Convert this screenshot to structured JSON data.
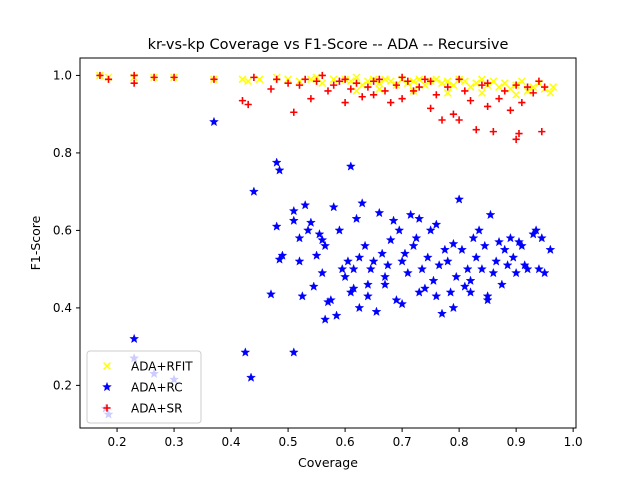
{
  "chart_data": {
    "type": "scatter",
    "title": "kr-vs-kp Coverage vs F1-Score -- ADA -- Recursive",
    "xlabel": "Coverage",
    "ylabel": "F1-Score",
    "xlim": [
      0.135,
      1.005
    ],
    "ylim": [
      0.09,
      1.045
    ],
    "xticks": [
      "0.2",
      "0.3",
      "0.4",
      "0.5",
      "0.6",
      "0.7",
      "0.8",
      "0.9",
      "1.0"
    ],
    "yticks": [
      "0.2",
      "0.4",
      "0.6",
      "0.8",
      "1.0"
    ],
    "grid": false,
    "legend_position": "lower-left",
    "series": [
      {
        "name": "ADA+RFIT",
        "marker": "x",
        "color": "#ffff00",
        "points": [
          [
            0.17,
            1.0
          ],
          [
            0.185,
            0.995
          ],
          [
            0.23,
            0.995
          ],
          [
            0.265,
            0.995
          ],
          [
            0.3,
            0.995
          ],
          [
            0.37,
            0.99
          ],
          [
            0.42,
            0.99
          ],
          [
            0.43,
            0.985
          ],
          [
            0.45,
            0.99
          ],
          [
            0.48,
            0.995
          ],
          [
            0.5,
            0.99
          ],
          [
            0.52,
            0.985
          ],
          [
            0.54,
            0.99
          ],
          [
            0.55,
            0.995
          ],
          [
            0.56,
            0.98
          ],
          [
            0.58,
            0.99
          ],
          [
            0.6,
            0.99
          ],
          [
            0.61,
            0.985
          ],
          [
            0.62,
            0.995
          ],
          [
            0.63,
            0.975
          ],
          [
            0.64,
            0.985
          ],
          [
            0.65,
            0.99
          ],
          [
            0.66,
            0.98
          ],
          [
            0.67,
            0.99
          ],
          [
            0.68,
            0.985
          ],
          [
            0.69,
            0.975
          ],
          [
            0.7,
            0.99
          ],
          [
            0.71,
            0.98
          ],
          [
            0.72,
            0.985
          ],
          [
            0.73,
            0.99
          ],
          [
            0.74,
            0.975
          ],
          [
            0.75,
            0.985
          ],
          [
            0.76,
            0.99
          ],
          [
            0.77,
            0.98
          ],
          [
            0.78,
            0.985
          ],
          [
            0.79,
            0.975
          ],
          [
            0.8,
            0.99
          ],
          [
            0.81,
            0.985
          ],
          [
            0.82,
            0.97
          ],
          [
            0.83,
            0.98
          ],
          [
            0.84,
            0.99
          ],
          [
            0.85,
            0.975
          ],
          [
            0.86,
            0.985
          ],
          [
            0.87,
            0.97
          ],
          [
            0.88,
            0.98
          ],
          [
            0.89,
            0.965
          ],
          [
            0.9,
            0.975
          ],
          [
            0.91,
            0.985
          ],
          [
            0.92,
            0.96
          ],
          [
            0.93,
            0.97
          ],
          [
            0.94,
            0.98
          ],
          [
            0.95,
            0.965
          ],
          [
            0.96,
            0.955
          ],
          [
            0.965,
            0.97
          ],
          [
            0.62,
            0.96
          ],
          [
            0.66,
            0.965
          ],
          [
            0.72,
            0.96
          ],
          [
            0.78,
            0.955
          ],
          [
            0.84,
            0.955
          ],
          [
            0.9,
            0.95
          ]
        ]
      },
      {
        "name": "ADA+RC",
        "marker": "star",
        "color": "#0000ff",
        "points": [
          [
            0.18,
            0.14
          ],
          [
            0.185,
            0.125
          ],
          [
            0.23,
            0.32
          ],
          [
            0.23,
            0.27
          ],
          [
            0.265,
            0.23
          ],
          [
            0.3,
            0.215
          ],
          [
            0.37,
            0.88
          ],
          [
            0.425,
            0.285
          ],
          [
            0.435,
            0.22
          ],
          [
            0.44,
            0.7
          ],
          [
            0.47,
            0.435
          ],
          [
            0.48,
            0.61
          ],
          [
            0.48,
            0.775
          ],
          [
            0.485,
            0.755
          ],
          [
            0.485,
            0.525
          ],
          [
            0.49,
            0.535
          ],
          [
            0.51,
            0.285
          ],
          [
            0.51,
            0.65
          ],
          [
            0.51,
            0.625
          ],
          [
            0.52,
            0.58
          ],
          [
            0.52,
            0.52
          ],
          [
            0.525,
            0.43
          ],
          [
            0.53,
            0.665
          ],
          [
            0.535,
            0.6
          ],
          [
            0.54,
            0.62
          ],
          [
            0.545,
            0.455
          ],
          [
            0.55,
            0.535
          ],
          [
            0.555,
            0.59
          ],
          [
            0.56,
            0.575
          ],
          [
            0.56,
            0.49
          ],
          [
            0.565,
            0.37
          ],
          [
            0.565,
            0.56
          ],
          [
            0.57,
            0.415
          ],
          [
            0.575,
            0.42
          ],
          [
            0.58,
            0.66
          ],
          [
            0.585,
            0.38
          ],
          [
            0.59,
            0.6
          ],
          [
            0.595,
            0.5
          ],
          [
            0.6,
            0.48
          ],
          [
            0.605,
            0.52
          ],
          [
            0.61,
            0.765
          ],
          [
            0.61,
            0.44
          ],
          [
            0.615,
            0.5
          ],
          [
            0.62,
            0.63
          ],
          [
            0.625,
            0.4
          ],
          [
            0.625,
            0.53
          ],
          [
            0.63,
            0.67
          ],
          [
            0.635,
            0.56
          ],
          [
            0.64,
            0.43
          ],
          [
            0.645,
            0.5
          ],
          [
            0.65,
            0.52
          ],
          [
            0.655,
            0.39
          ],
          [
            0.66,
            0.645
          ],
          [
            0.665,
            0.54
          ],
          [
            0.67,
            0.46
          ],
          [
            0.675,
            0.51
          ],
          [
            0.68,
            0.575
          ],
          [
            0.685,
            0.625
          ],
          [
            0.69,
            0.42
          ],
          [
            0.695,
            0.6
          ],
          [
            0.7,
            0.52
          ],
          [
            0.705,
            0.54
          ],
          [
            0.71,
            0.49
          ],
          [
            0.715,
            0.64
          ],
          [
            0.72,
            0.56
          ],
          [
            0.725,
            0.58
          ],
          [
            0.73,
            0.63
          ],
          [
            0.735,
            0.5
          ],
          [
            0.74,
            0.45
          ],
          [
            0.745,
            0.53
          ],
          [
            0.75,
            0.6
          ],
          [
            0.755,
            0.47
          ],
          [
            0.76,
            0.615
          ],
          [
            0.765,
            0.51
          ],
          [
            0.77,
            0.385
          ],
          [
            0.775,
            0.55
          ],
          [
            0.78,
            0.52
          ],
          [
            0.785,
            0.44
          ],
          [
            0.79,
            0.565
          ],
          [
            0.795,
            0.48
          ],
          [
            0.8,
            0.68
          ],
          [
            0.805,
            0.55
          ],
          [
            0.81,
            0.455
          ],
          [
            0.815,
            0.5
          ],
          [
            0.82,
            0.47
          ],
          [
            0.825,
            0.58
          ],
          [
            0.83,
            0.53
          ],
          [
            0.835,
            0.6
          ],
          [
            0.84,
            0.5
          ],
          [
            0.845,
            0.56
          ],
          [
            0.85,
            0.42
          ],
          [
            0.855,
            0.64
          ],
          [
            0.86,
            0.49
          ],
          [
            0.865,
            0.52
          ],
          [
            0.87,
            0.57
          ],
          [
            0.875,
            0.46
          ],
          [
            0.88,
            0.55
          ],
          [
            0.885,
            0.51
          ],
          [
            0.89,
            0.58
          ],
          [
            0.895,
            0.53
          ],
          [
            0.9,
            0.49
          ],
          [
            0.905,
            0.57
          ],
          [
            0.91,
            0.56
          ],
          [
            0.915,
            0.51
          ],
          [
            0.92,
            0.5
          ],
          [
            0.93,
            0.59
          ],
          [
            0.935,
            0.6
          ],
          [
            0.94,
            0.5
          ],
          [
            0.945,
            0.58
          ],
          [
            0.95,
            0.49
          ],
          [
            0.96,
            0.55
          ],
          [
            0.615,
            0.45
          ],
          [
            0.64,
            0.46
          ],
          [
            0.67,
            0.48
          ],
          [
            0.7,
            0.41
          ],
          [
            0.73,
            0.44
          ],
          [
            0.76,
            0.43
          ],
          [
            0.79,
            0.4
          ],
          [
            0.82,
            0.44
          ],
          [
            0.85,
            0.43
          ]
        ]
      },
      {
        "name": "ADA+SR",
        "marker": "plus",
        "color": "#ff0000",
        "points": [
          [
            0.17,
            1.0
          ],
          [
            0.185,
            0.99
          ],
          [
            0.23,
            1.0
          ],
          [
            0.23,
            0.98
          ],
          [
            0.265,
            0.995
          ],
          [
            0.3,
            0.995
          ],
          [
            0.37,
            0.99
          ],
          [
            0.42,
            0.935
          ],
          [
            0.43,
            0.925
          ],
          [
            0.44,
            0.995
          ],
          [
            0.47,
            0.965
          ],
          [
            0.48,
            0.99
          ],
          [
            0.5,
            0.98
          ],
          [
            0.51,
            0.905
          ],
          [
            0.52,
            0.975
          ],
          [
            0.53,
            0.99
          ],
          [
            0.54,
            0.94
          ],
          [
            0.55,
            0.985
          ],
          [
            0.56,
            1.0
          ],
          [
            0.57,
            0.96
          ],
          [
            0.58,
            0.975
          ],
          [
            0.59,
            0.985
          ],
          [
            0.6,
            0.93
          ],
          [
            0.61,
            0.965
          ],
          [
            0.62,
            0.98
          ],
          [
            0.63,
            0.945
          ],
          [
            0.64,
            0.97
          ],
          [
            0.65,
            0.95
          ],
          [
            0.66,
            0.99
          ],
          [
            0.67,
            0.96
          ],
          [
            0.68,
            0.93
          ],
          [
            0.69,
            0.975
          ],
          [
            0.7,
            0.94
          ],
          [
            0.71,
            0.985
          ],
          [
            0.72,
            0.96
          ],
          [
            0.73,
            0.97
          ],
          [
            0.74,
            0.99
          ],
          [
            0.75,
            0.915
          ],
          [
            0.76,
            0.95
          ],
          [
            0.77,
            0.885
          ],
          [
            0.78,
            0.97
          ],
          [
            0.79,
            0.9
          ],
          [
            0.8,
            0.885
          ],
          [
            0.81,
            0.96
          ],
          [
            0.82,
            0.935
          ],
          [
            0.83,
            0.86
          ],
          [
            0.84,
            0.975
          ],
          [
            0.85,
            0.92
          ],
          [
            0.86,
            0.855
          ],
          [
            0.87,
            0.94
          ],
          [
            0.88,
            0.96
          ],
          [
            0.89,
            0.91
          ],
          [
            0.9,
            0.835
          ],
          [
            0.905,
            0.85
          ],
          [
            0.91,
            0.93
          ],
          [
            0.92,
            0.97
          ],
          [
            0.93,
            0.955
          ],
          [
            0.94,
            0.985
          ],
          [
            0.945,
            0.855
          ],
          [
            0.95,
            0.97
          ],
          [
            0.6,
            0.99
          ],
          [
            0.65,
            0.985
          ],
          [
            0.7,
            0.995
          ],
          [
            0.75,
            0.985
          ],
          [
            0.8,
            0.99
          ],
          [
            0.85,
            0.98
          ],
          [
            0.9,
            0.975
          ]
        ]
      }
    ]
  }
}
